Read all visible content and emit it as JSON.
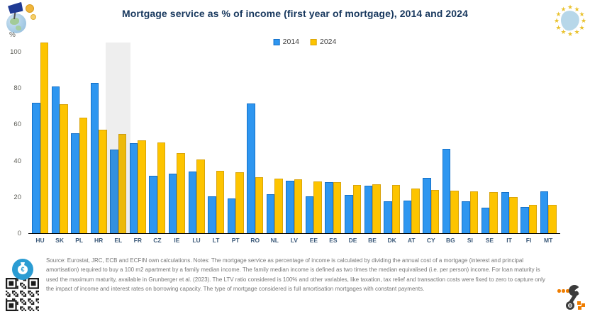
{
  "chart_data": {
    "type": "bar",
    "title": "Mortgage service as % of income (first year of mortgage), 2014 and 2024",
    "ylabel": "%",
    "xlabel": "",
    "ylim": [
      0,
      105
    ],
    "yticks": [
      0,
      20,
      40,
      60,
      80,
      100
    ],
    "grid": false,
    "legend_position": "top-center",
    "highlight_category": "EL",
    "categories": [
      "HU",
      "SK",
      "PL",
      "HR",
      "EL",
      "FR",
      "CZ",
      "IE",
      "LU",
      "LT",
      "PT",
      "RO",
      "NL",
      "LV",
      "EE",
      "ES",
      "DE",
      "BE",
      "DK",
      "AT",
      "CY",
      "BG",
      "SI",
      "SE",
      "IT",
      "FI",
      "MT"
    ],
    "series": [
      {
        "name": "2014",
        "color": "#2E96F0",
        "border_color": "#1470C8",
        "values": [
          72,
          81,
          55,
          83,
          46,
          49.5,
          31.5,
          33,
          34,
          20.5,
          19,
          71.5,
          21.5,
          29,
          20.5,
          28,
          21,
          26,
          17.5,
          18,
          30.5,
          46.5,
          17.5,
          14,
          22.5,
          14.5,
          23
        ]
      },
      {
        "name": "2024",
        "color": "#FDC400",
        "border_color": "#D9A40B",
        "values": [
          105,
          71,
          63.5,
          57,
          54.5,
          51,
          50,
          44,
          40.5,
          34.5,
          33.5,
          31,
          30,
          29.5,
          28.5,
          28,
          26.5,
          27,
          26.5,
          24.5,
          24,
          23.5,
          23,
          22.5,
          20,
          15.5,
          15.5
        ]
      }
    ]
  },
  "icons": {
    "top_left": "globe-with-eu-flag-and-coins",
    "top_right": "eu-stars-emblem",
    "bottom_left_badge": "money-bag-euro-badge",
    "bottom_left_badge_symbol": "€",
    "bottom_left_qr": "qr-code",
    "bottom_right": "percent-pacman-logo"
  },
  "footer": {
    "source_text": "Source: Eurostat, JRC, ECB and ECFIN own calculations. Notes: The mortgage service as percentage of income is calculated by dividing the annual cost of a mortgage (interest and principal amortisation) required to buy a 100 m2 apartment by a family median income. The family median income is defined as two times the median equivalised (i.e. per person) income. For loan maturity is used the maximum maturity, available in Grunberger et al. (2023). The LTV ratio considered is 100% and other variables, like taxation, tax relief and transaction costs were fixed to zero to capture only the impact of income and interest rates on borrowing capacity. The type of mortgage considered is full amortisation mortgages with constant payments."
  }
}
